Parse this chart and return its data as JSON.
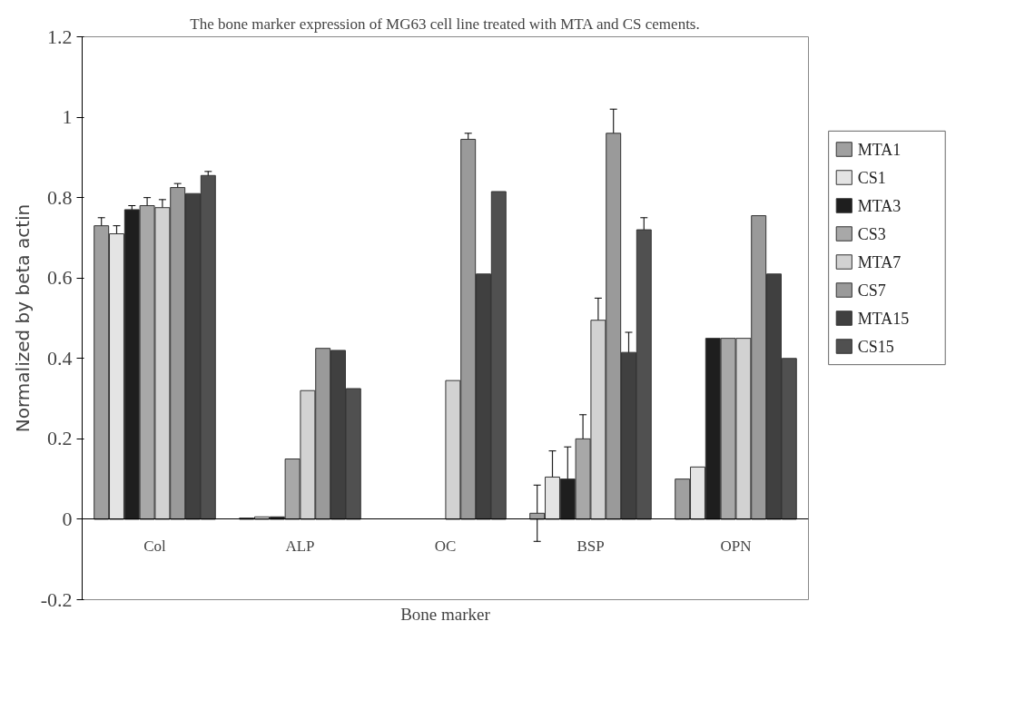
{
  "chart_data": {
    "type": "bar",
    "title": "The bone marker expression of MG63 cell line treated with MTA and CS cements.",
    "xlabel": "Bone marker",
    "ylabel": "Normalized by beta actin",
    "categories": [
      "Col",
      "ALP",
      "OC",
      "BSP",
      "OPN"
    ],
    "series": [
      {
        "name": "MTA1",
        "color": "#a0a0a0",
        "values": [
          0.73,
          0.003,
          null,
          0.015,
          0.1
        ],
        "errors": [
          0.02,
          null,
          null,
          0.07,
          null
        ]
      },
      {
        "name": "CS1",
        "color": "#e4e4e4",
        "values": [
          0.71,
          0.006,
          null,
          0.105,
          0.13
        ],
        "errors": [
          0.02,
          null,
          null,
          0.065,
          null
        ]
      },
      {
        "name": "MTA3",
        "color": "#1e1e1e",
        "values": [
          0.77,
          0.006,
          null,
          0.1,
          0.45
        ],
        "errors": [
          0.01,
          null,
          null,
          0.08,
          null
        ]
      },
      {
        "name": "CS3",
        "color": "#a8a8a8",
        "values": [
          0.78,
          0.15,
          null,
          0.2,
          0.45
        ],
        "errors": [
          0.02,
          null,
          null,
          0.06,
          null
        ]
      },
      {
        "name": "MTA7",
        "color": "#d2d2d2",
        "values": [
          0.775,
          0.32,
          0.345,
          0.495,
          0.45
        ],
        "errors": [
          0.02,
          null,
          null,
          0.055,
          null
        ]
      },
      {
        "name": "CS7",
        "color": "#9a9a9a",
        "values": [
          0.825,
          0.425,
          0.945,
          0.96,
          0.755
        ],
        "errors": [
          0.01,
          null,
          0.015,
          0.06,
          null
        ]
      },
      {
        "name": "MTA15",
        "color": "#404040",
        "values": [
          0.81,
          0.42,
          0.61,
          0.415,
          0.61
        ],
        "errors": [
          null,
          null,
          null,
          0.05,
          null
        ]
      },
      {
        "name": "CS15",
        "color": "#505050",
        "values": [
          0.855,
          0.325,
          0.815,
          0.72,
          0.4
        ],
        "errors": [
          0.01,
          null,
          null,
          0.03,
          null
        ]
      }
    ],
    "ylim": [
      -0.2,
      1.2
    ],
    "yticks": [
      -0.2,
      0,
      0.2,
      0.4,
      0.6,
      0.8,
      1,
      1.2
    ],
    "grid": false,
    "legend": "right"
  }
}
